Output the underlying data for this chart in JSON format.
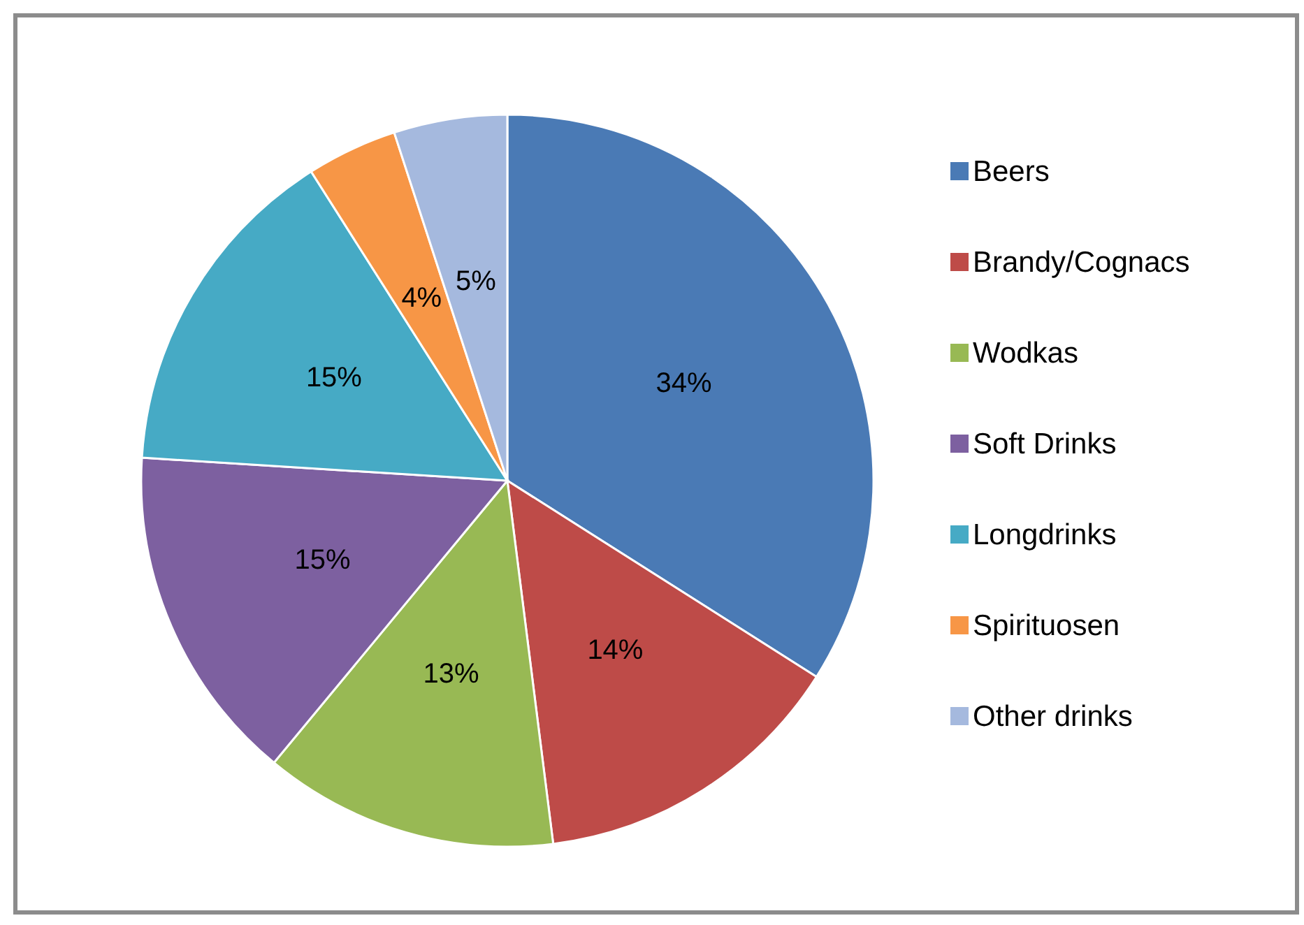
{
  "chart_data": {
    "type": "pie",
    "categories": [
      "Beers",
      "Brandy/Cognacs",
      "Wodkas",
      "Soft Drinks",
      "Longdrinks",
      "Spirituosen",
      "Other drinks"
    ],
    "values": [
      34,
      14,
      13,
      15,
      15,
      4,
      5
    ],
    "colors": [
      "#4a7ab5",
      "#be4b48",
      "#98b954",
      "#7d60a0",
      "#46aac5",
      "#f79646",
      "#a5b9de"
    ],
    "value_labels": [
      "34%",
      "14%",
      "13%",
      "15%",
      "15%",
      "4%",
      "5%"
    ],
    "legend": "right"
  }
}
